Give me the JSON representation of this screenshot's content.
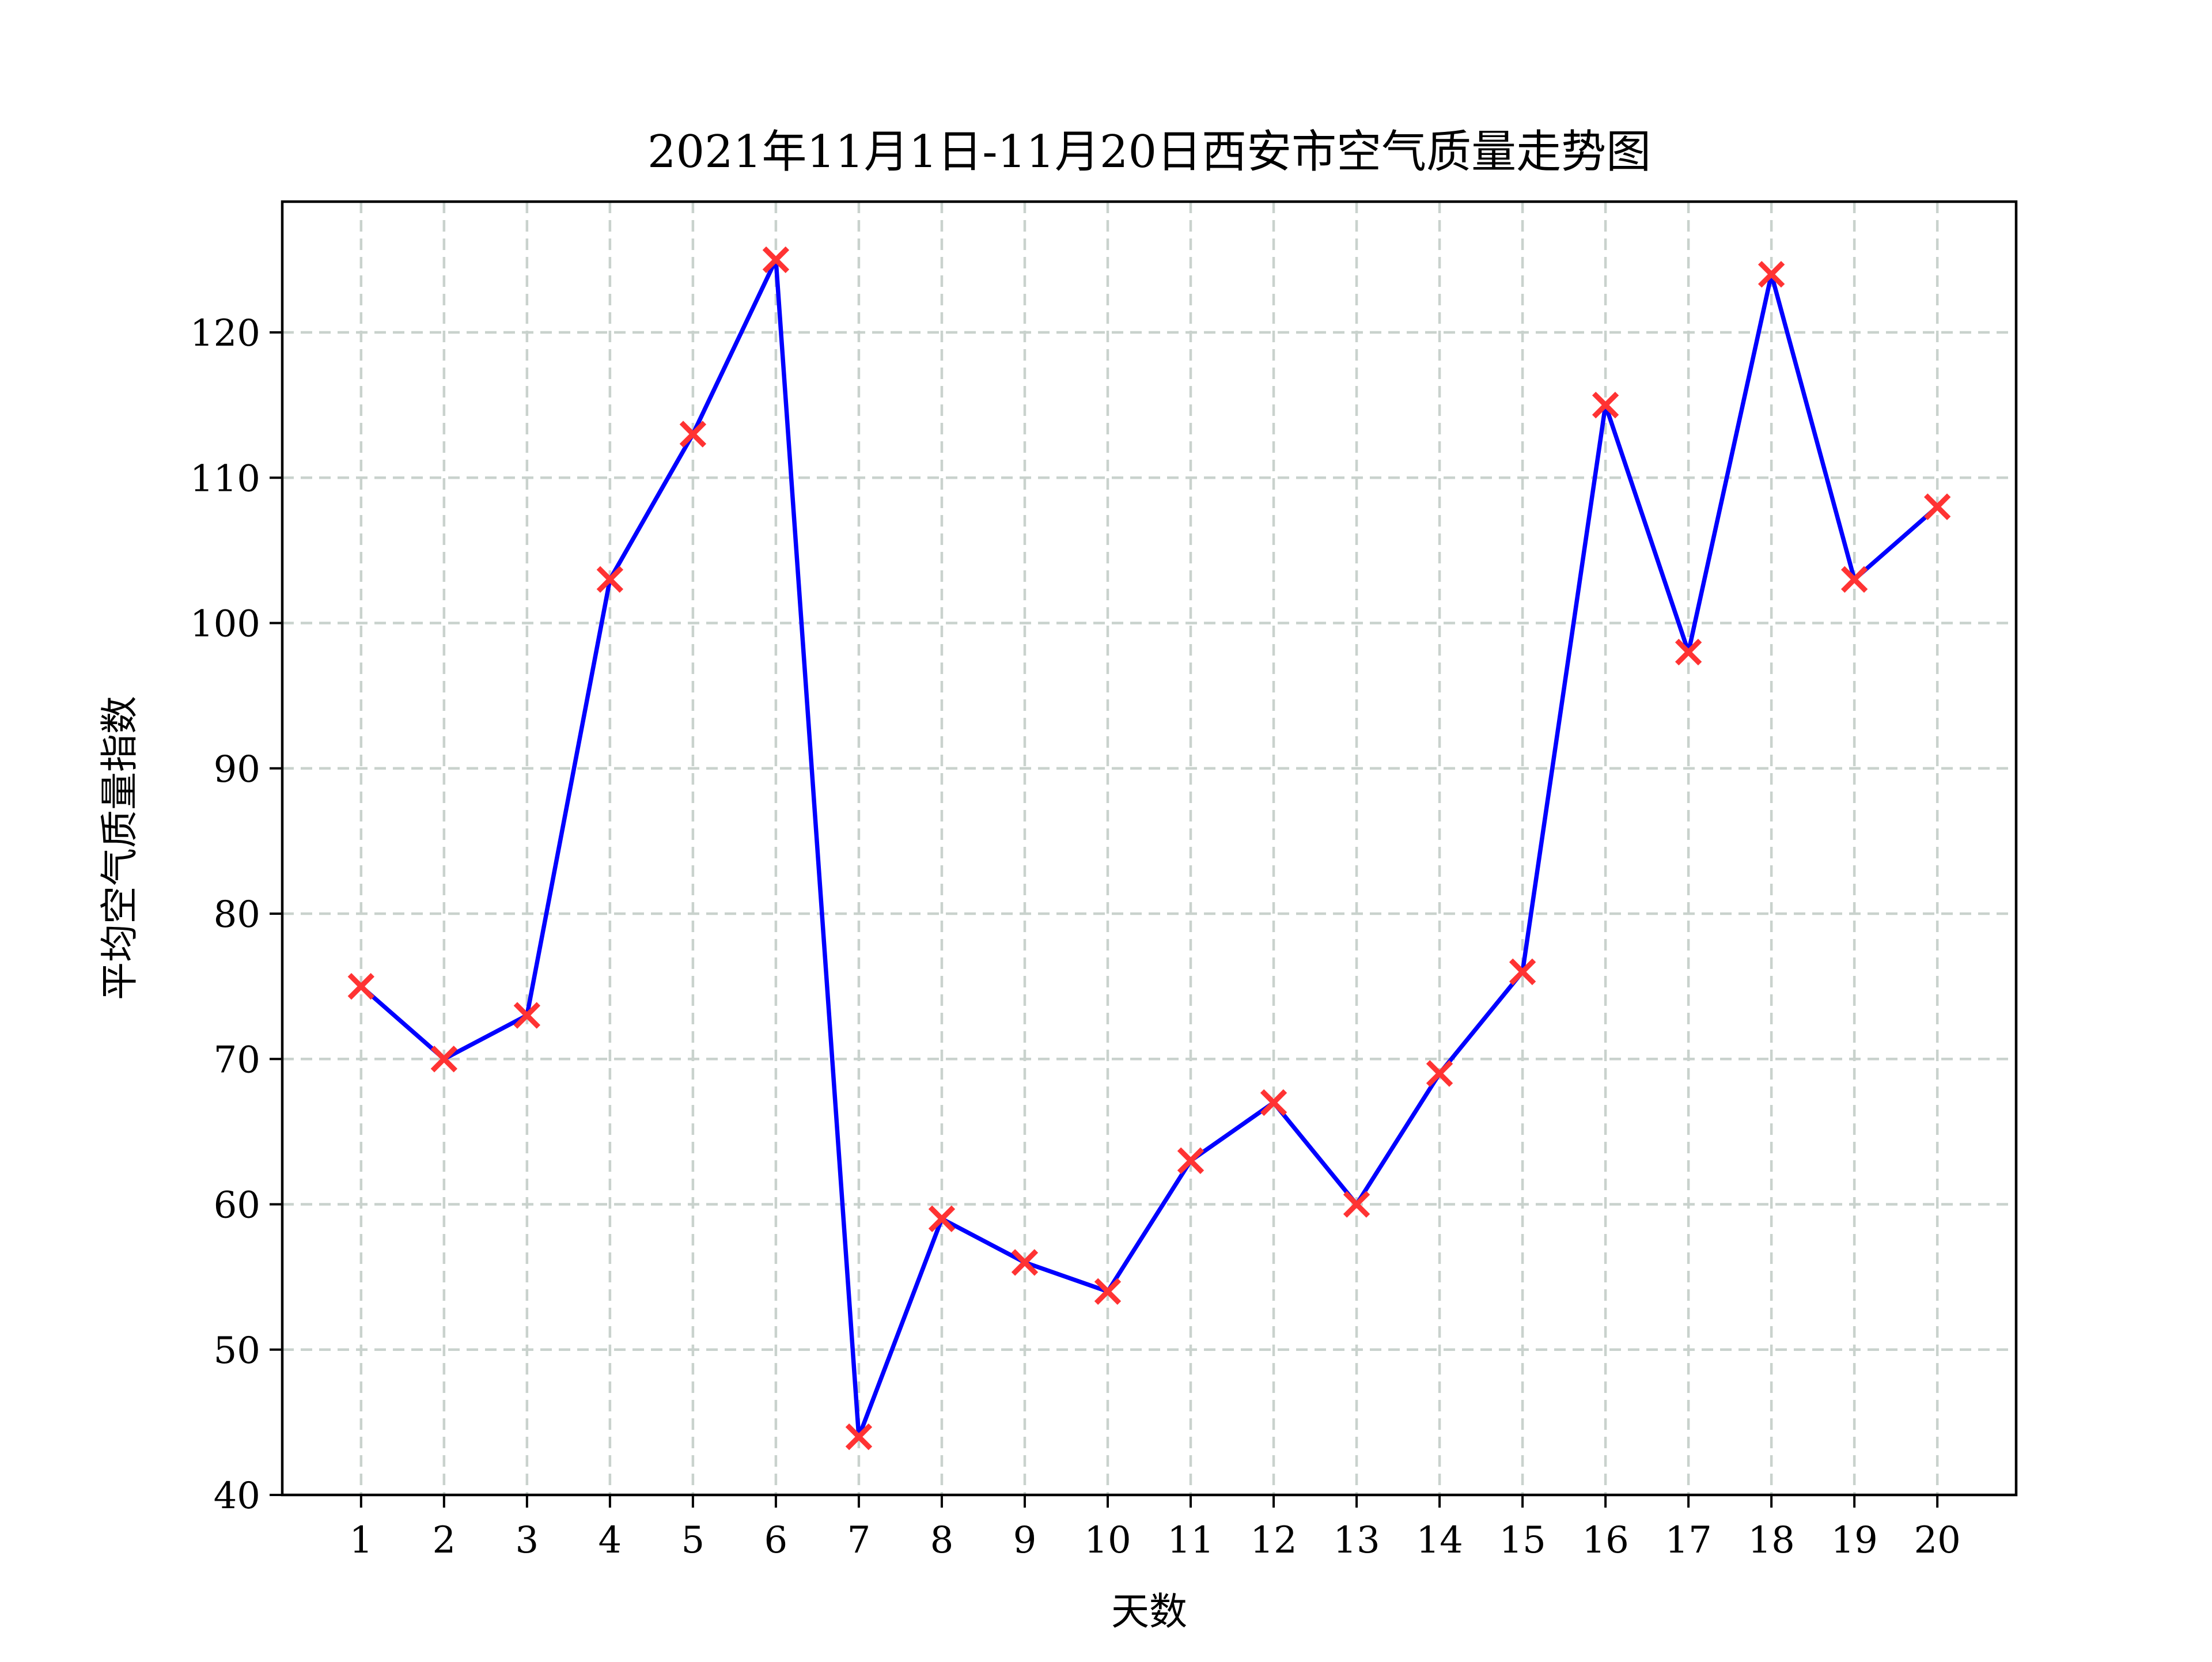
{
  "chart_data": {
    "type": "line",
    "title": "2021年11月1日-11月20日西安市空气质量走势图",
    "xlabel": "天数",
    "ylabel": "平均空气质量指数",
    "x": [
      1,
      2,
      3,
      4,
      5,
      6,
      7,
      8,
      9,
      10,
      11,
      12,
      13,
      14,
      15,
      16,
      17,
      18,
      19,
      20
    ],
    "x_tick_labels": [
      "1",
      "2",
      "3",
      "4",
      "5",
      "6",
      "7",
      "8",
      "9",
      "10",
      "11",
      "12",
      "13",
      "14",
      "15",
      "16",
      "17",
      "18",
      "19",
      "20"
    ],
    "series": [
      {
        "values": [
          75,
          70,
          73,
          103,
          113,
          125,
          44,
          59,
          56,
          54,
          63,
          67,
          60,
          69,
          76,
          115,
          98,
          124,
          103,
          108
        ],
        "line_color": "#0000ff",
        "marker": "x",
        "marker_color": "#ff3333"
      }
    ],
    "xlim": [
      0.05,
      20.95
    ],
    "ylim": [
      40,
      129
    ],
    "y_ticks": [
      40,
      50,
      60,
      70,
      80,
      90,
      100,
      110,
      120
    ],
    "y_tick_labels": [
      "40",
      "50",
      "60",
      "70",
      "80",
      "90",
      "100",
      "110",
      "120"
    ],
    "grid": true,
    "grid_style": "dashed",
    "grid_color": "#c9d2cd"
  }
}
